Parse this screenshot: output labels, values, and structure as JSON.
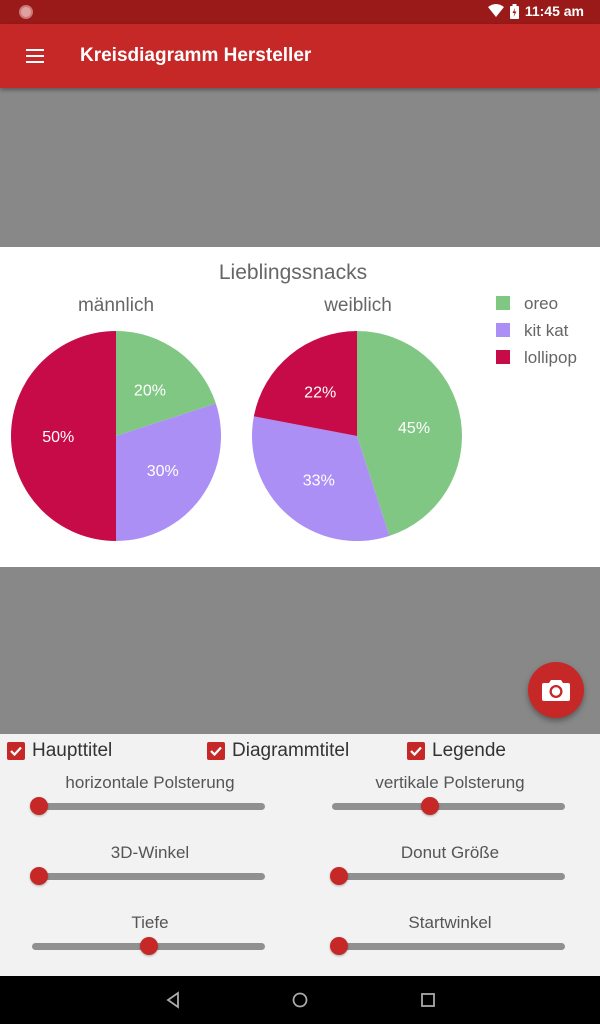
{
  "status_bar": {
    "time": "11:45 am"
  },
  "app_bar": {
    "title": "Kreisdiagramm Hersteller"
  },
  "colors": {
    "oreo": "#81c784",
    "kit_kat": "#ac8ff5",
    "lollipop": "#c60b48",
    "accent": "#c62828"
  },
  "chart_data": {
    "type": "pie",
    "title": "Lieblingssnacks",
    "legend": [
      "oreo",
      "kit kat",
      "lollipop"
    ],
    "legend_position": "top-right",
    "charts": [
      {
        "title": "männlich",
        "values": [
          20,
          30,
          50
        ],
        "labels": [
          "20%",
          "30%",
          "50%"
        ]
      },
      {
        "title": "weiblich",
        "values": [
          45,
          33,
          22
        ],
        "labels": [
          "45%",
          "33%",
          "22%"
        ]
      }
    ]
  },
  "controls": {
    "checkboxes": [
      {
        "label": "Haupttitel",
        "checked": true
      },
      {
        "label": "Diagrammtitel",
        "checked": true
      },
      {
        "label": "Legende",
        "checked": true
      }
    ],
    "sliders": [
      {
        "label": "horizontale Polsterung",
        "value": 0.03
      },
      {
        "label": "vertikale Polsterung",
        "value": 0.42
      },
      {
        "label": "3D-Winkel",
        "value": 0.03
      },
      {
        "label": "Donut Größe",
        "value": 0.03
      },
      {
        "label": "Tiefe",
        "value": 0.5
      },
      {
        "label": "Startwinkel",
        "value": 0.03
      }
    ]
  },
  "icons": {
    "menu": "menu-icon",
    "camera": "camera-icon",
    "back": "back-icon",
    "home": "home-icon",
    "recents": "recents-icon"
  }
}
